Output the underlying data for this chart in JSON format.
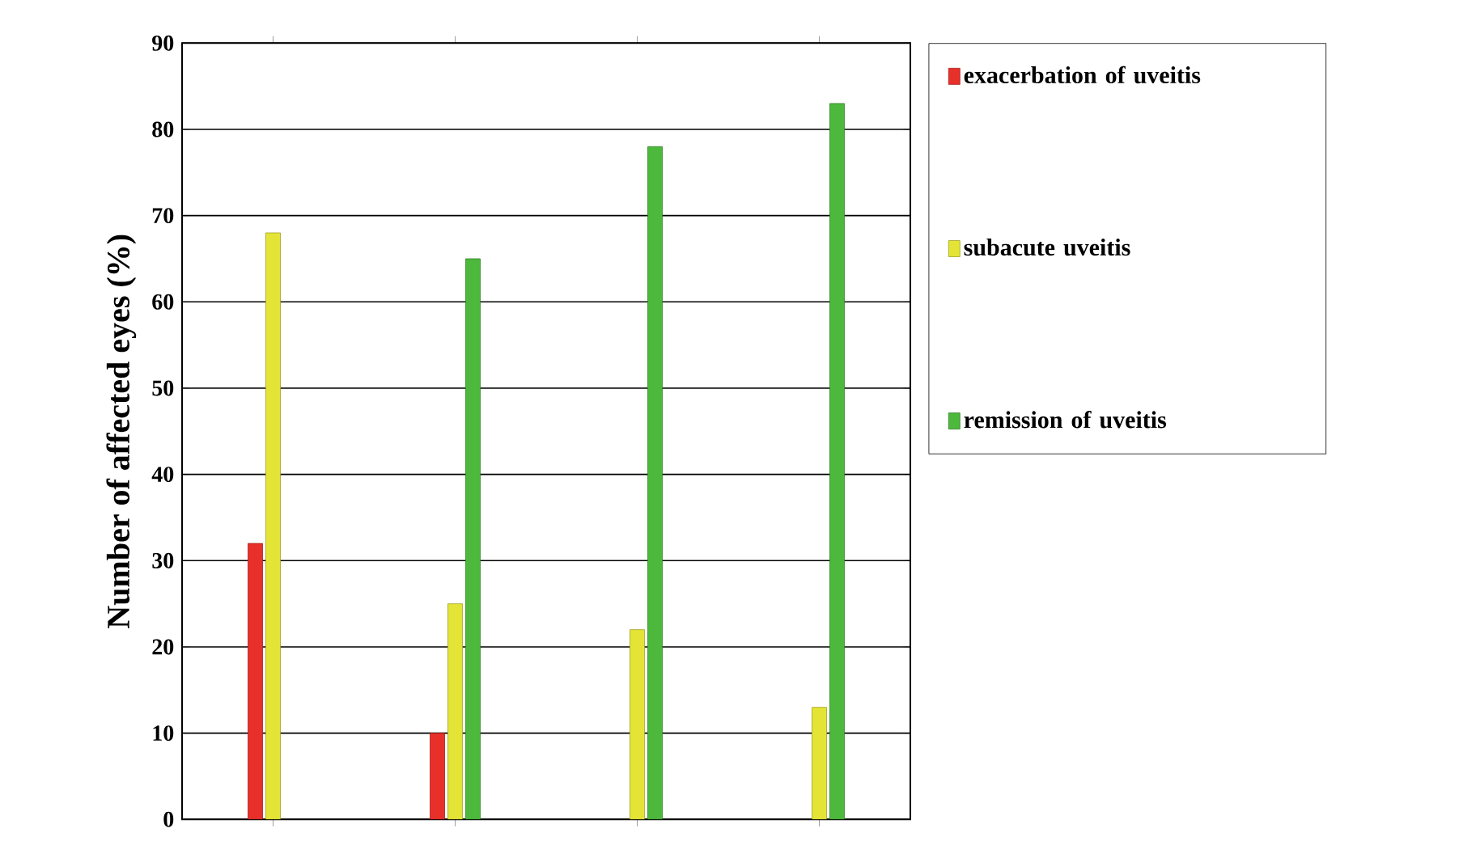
{
  "chart_data": {
    "type": "bar",
    "ylabel": "Number of affected eyes (%)",
    "categories": [
      null,
      null,
      null,
      null
    ],
    "series": [
      {
        "name": "exacerbation of uveitis",
        "color": "#e8302a",
        "values": [
          32,
          10,
          null,
          null
        ]
      },
      {
        "name": "subacute uveitis",
        "color": "#e4e436",
        "values": [
          68,
          25,
          22,
          13
        ]
      },
      {
        "name": "remission of uveitis",
        "color": "#4cb83c",
        "values": [
          null,
          65,
          78,
          83
        ]
      }
    ],
    "ylim": [
      0,
      90
    ],
    "yticks": [
      0,
      10,
      20,
      30,
      40,
      50,
      60,
      70,
      80,
      90
    ],
    "grid": "y",
    "legend": "right"
  }
}
